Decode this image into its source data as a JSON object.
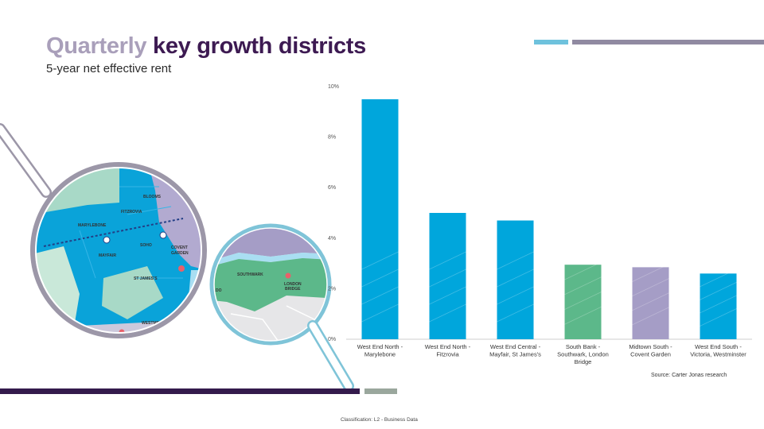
{
  "slide": {
    "title_light": "Quarterly",
    "title_dark": "key growth districts",
    "subtitle": "5-year net effective rent",
    "source": "Source: Carter Jonas research",
    "classification": "Classification: L2 - Business Data"
  },
  "colors": {
    "blue": "#00a6dc",
    "green": "#5cb88a",
    "lilac": "#a59dc6",
    "purple": "#3b1a55"
  },
  "map_labels": {
    "bloomsbury": "BLOOMS",
    "fitzrovia": "FITZROVIA",
    "marylebone": "MARYLEBONE",
    "soho": "SOHO",
    "covent_garden_1": "COVENT",
    "covent_garden_2": "GARDEN",
    "mayfair": "MAYFAIR",
    "st_james": "ST JAMES'S",
    "westminster": "WESTMINSTER",
    "victoria": "VICTORIA",
    "southwark": "SOUTHWARK",
    "london_bridge_1": "LONDON",
    "london_bridge_2": "BRIDGE",
    "ldo": "LDO"
  },
  "chart_data": {
    "type": "bar",
    "title": "5-year net effective rent",
    "xlabel": "",
    "ylabel": "",
    "ylim": [
      0,
      10
    ],
    "yticks": [
      0,
      2,
      4,
      6,
      8,
      10
    ],
    "ytick_labels": [
      "0%",
      "2%",
      "4%",
      "6%",
      "8%",
      "10%"
    ],
    "categories": [
      [
        "West End North -",
        "Marylebone"
      ],
      [
        "West End North -",
        "Fitzrovia"
      ],
      [
        "West End Central -",
        "Mayfair, St James's"
      ],
      [
        "South Bank -",
        "Southwark, London",
        "Bridge"
      ],
      [
        "Midtown South -",
        "Covent Garden"
      ],
      [
        "West End South -",
        "Victoria, Westminster"
      ]
    ],
    "values": [
      9.5,
      5.0,
      4.7,
      2.95,
      2.85,
      2.6
    ],
    "bar_colors": [
      "#00a6dc",
      "#00a6dc",
      "#00a6dc",
      "#5cb88a",
      "#a59dc6",
      "#00a6dc"
    ]
  }
}
